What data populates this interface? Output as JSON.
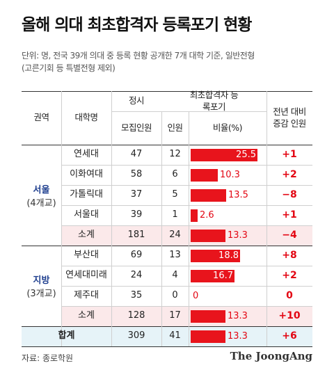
{
  "title": "올해 의대 최초합격자 등록포기 현황",
  "subtitle_lines": [
    "단위: 명, 전국 39개 의대 중 등록 현황 공개한 7개 대학 기준, 일반전형",
    "(고른기회 등 특별전형 제외)"
  ],
  "source": "자료: 종로학원",
  "brand": "The JoongAng",
  "chart_data": {
    "type": "table",
    "headers": {
      "region": "권역",
      "university": "대학명",
      "regular": "정시",
      "recruit": "모집인원",
      "forfeit_group": "최초합격자 등록포기",
      "count": "인원",
      "ratio": "비율(%)",
      "change": "전년 대비 증감 인원"
    },
    "groups": [
      {
        "region": "서울",
        "region_count": "(4개교)",
        "rows": [
          {
            "name": "연세대",
            "recruit": "47",
            "count": "12",
            "ratio": 25.5,
            "ratio_label": "25.5",
            "change": "+1"
          },
          {
            "name": "이화여대",
            "recruit": "58",
            "count": "6",
            "ratio": 10.3,
            "ratio_label": "10.3",
            "change": "+2"
          },
          {
            "name": "가톨릭대",
            "recruit": "37",
            "count": "5",
            "ratio": 13.5,
            "ratio_label": "13.5",
            "change": "−8"
          },
          {
            "name": "서울대",
            "recruit": "39",
            "count": "1",
            "ratio": 2.6,
            "ratio_label": "2.6",
            "change": "+1"
          }
        ],
        "subtotal": {
          "name": "소계",
          "recruit": "181",
          "count": "24",
          "ratio": 13.3,
          "ratio_label": "13.3",
          "change": "−4"
        }
      },
      {
        "region": "지방",
        "region_count": "(3개교)",
        "rows": [
          {
            "name": "부산대",
            "recruit": "69",
            "count": "13",
            "ratio": 18.8,
            "ratio_label": "18.8",
            "change": "+8"
          },
          {
            "name": "연세대미래",
            "recruit": "24",
            "count": "4",
            "ratio": 16.7,
            "ratio_label": "16.7",
            "change": "+2"
          },
          {
            "name": "제주대",
            "recruit": "35",
            "count": "0",
            "ratio": 0,
            "ratio_label": "0",
            "change": "0"
          }
        ],
        "subtotal": {
          "name": "소계",
          "recruit": "128",
          "count": "17",
          "ratio": 13.3,
          "ratio_label": "13.3",
          "change": "+10"
        }
      }
    ],
    "total": {
      "name": "합계",
      "recruit": "309",
      "count": "41",
      "ratio": 13.3,
      "ratio_label": "13.3",
      "change": "+6"
    },
    "ratio_axis_max": 25.5,
    "colors": {
      "bar": "#e8141c",
      "change": "#e30613",
      "region": "#1f3f8f",
      "subtotal_bg": "#fbe9ea",
      "total_bg": "#e6f3f8"
    }
  }
}
